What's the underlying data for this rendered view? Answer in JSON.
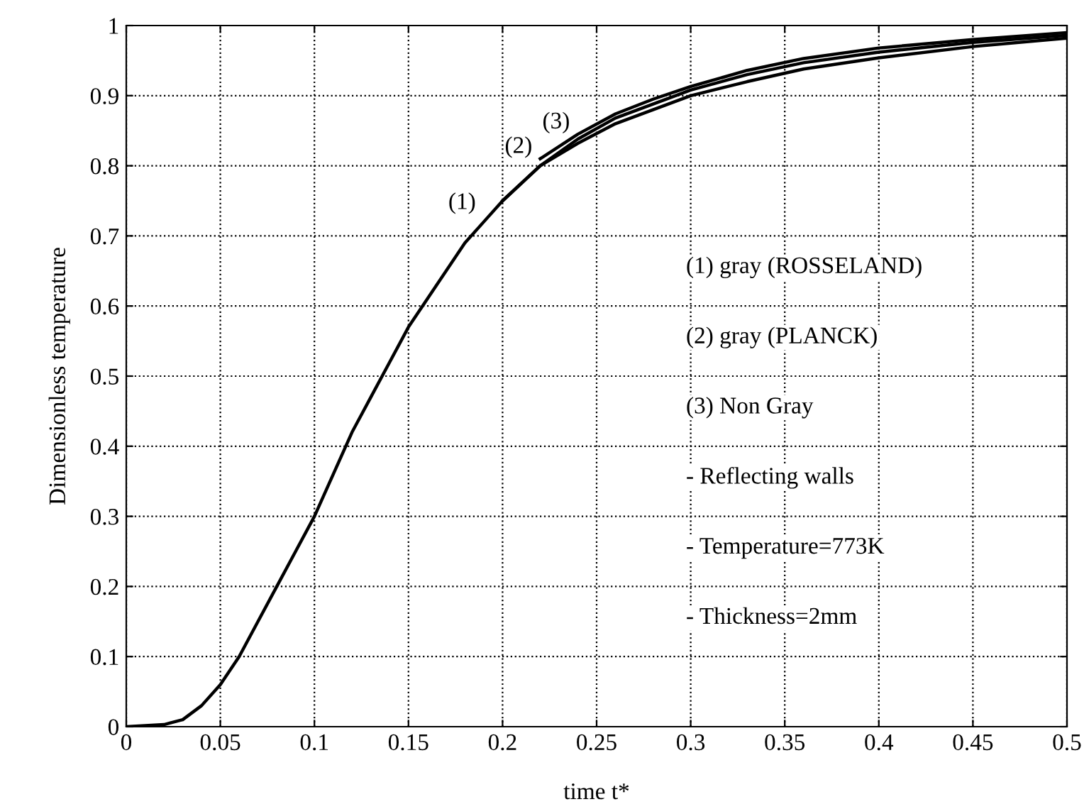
{
  "chart_data": {
    "type": "line",
    "xlabel": "time t*",
    "ylabel": "Dimensionless temperature",
    "x": [
      0,
      0.02,
      0.03,
      0.04,
      0.05,
      0.06,
      0.07,
      0.08,
      0.09,
      0.1,
      0.11,
      0.12,
      0.13,
      0.14,
      0.15,
      0.16,
      0.17,
      0.18,
      0.19,
      0.2,
      0.22,
      0.24,
      0.26,
      0.28,
      0.3,
      0.33,
      0.36,
      0.4,
      0.45,
      0.5
    ],
    "series": [
      {
        "color": "#000000",
        "values": [
          0,
          0.003,
          0.01,
          0.03,
          0.06,
          0.1,
          0.15,
          0.2,
          0.25,
          0.3,
          0.36,
          0.42,
          0.47,
          0.52,
          0.57,
          0.61,
          0.65,
          0.69,
          0.72,
          0.75,
          0.8,
          0.832,
          0.86,
          0.88,
          0.9,
          0.92,
          0.938,
          0.954,
          0.97,
          0.982
        ]
      },
      {
        "color": "#000000",
        "values": [
          null,
          null,
          null,
          null,
          null,
          null,
          null,
          null,
          null,
          null,
          null,
          null,
          null,
          null,
          null,
          null,
          null,
          null,
          null,
          0.75,
          0.8,
          0.838,
          0.868,
          0.888,
          0.908,
          0.93,
          0.947,
          0.962,
          0.976,
          0.986
        ]
      },
      {
        "color": "#000000",
        "values": [
          null,
          null,
          null,
          null,
          null,
          null,
          null,
          null,
          null,
          null,
          null,
          null,
          null,
          null,
          null,
          null,
          null,
          null,
          null,
          null,
          0.81,
          0.845,
          0.874,
          0.895,
          0.913,
          0.936,
          0.953,
          0.968,
          0.98,
          0.99
        ]
      }
    ],
    "annotations": [
      {
        "text": "(1)",
        "x": 0.19,
        "y": 0.72
      },
      {
        "text": "(2)",
        "x": 0.22,
        "y": 0.8
      },
      {
        "text": "(3)",
        "x": 0.24,
        "y": 0.835
      },
      "(1) gray (ROSSELAND)",
      "(2) gray (PLANCK)",
      "(3) Non Gray",
      "- Reflecting walls",
      "- Temperature=773K",
      "- Thickness=2mm"
    ],
    "xlim": [
      0,
      0.5
    ],
    "ylim": [
      0,
      1
    ],
    "xticks": [
      0,
      0.05,
      0.1,
      0.15,
      0.2,
      0.25,
      0.3,
      0.35,
      0.4,
      0.45,
      0.5
    ],
    "yticks": [
      0,
      0.1,
      0.2,
      0.3,
      0.4,
      0.5,
      0.6,
      0.7,
      0.8,
      0.9,
      1
    ],
    "grid": true,
    "line_style": "solid",
    "marker": "none"
  }
}
